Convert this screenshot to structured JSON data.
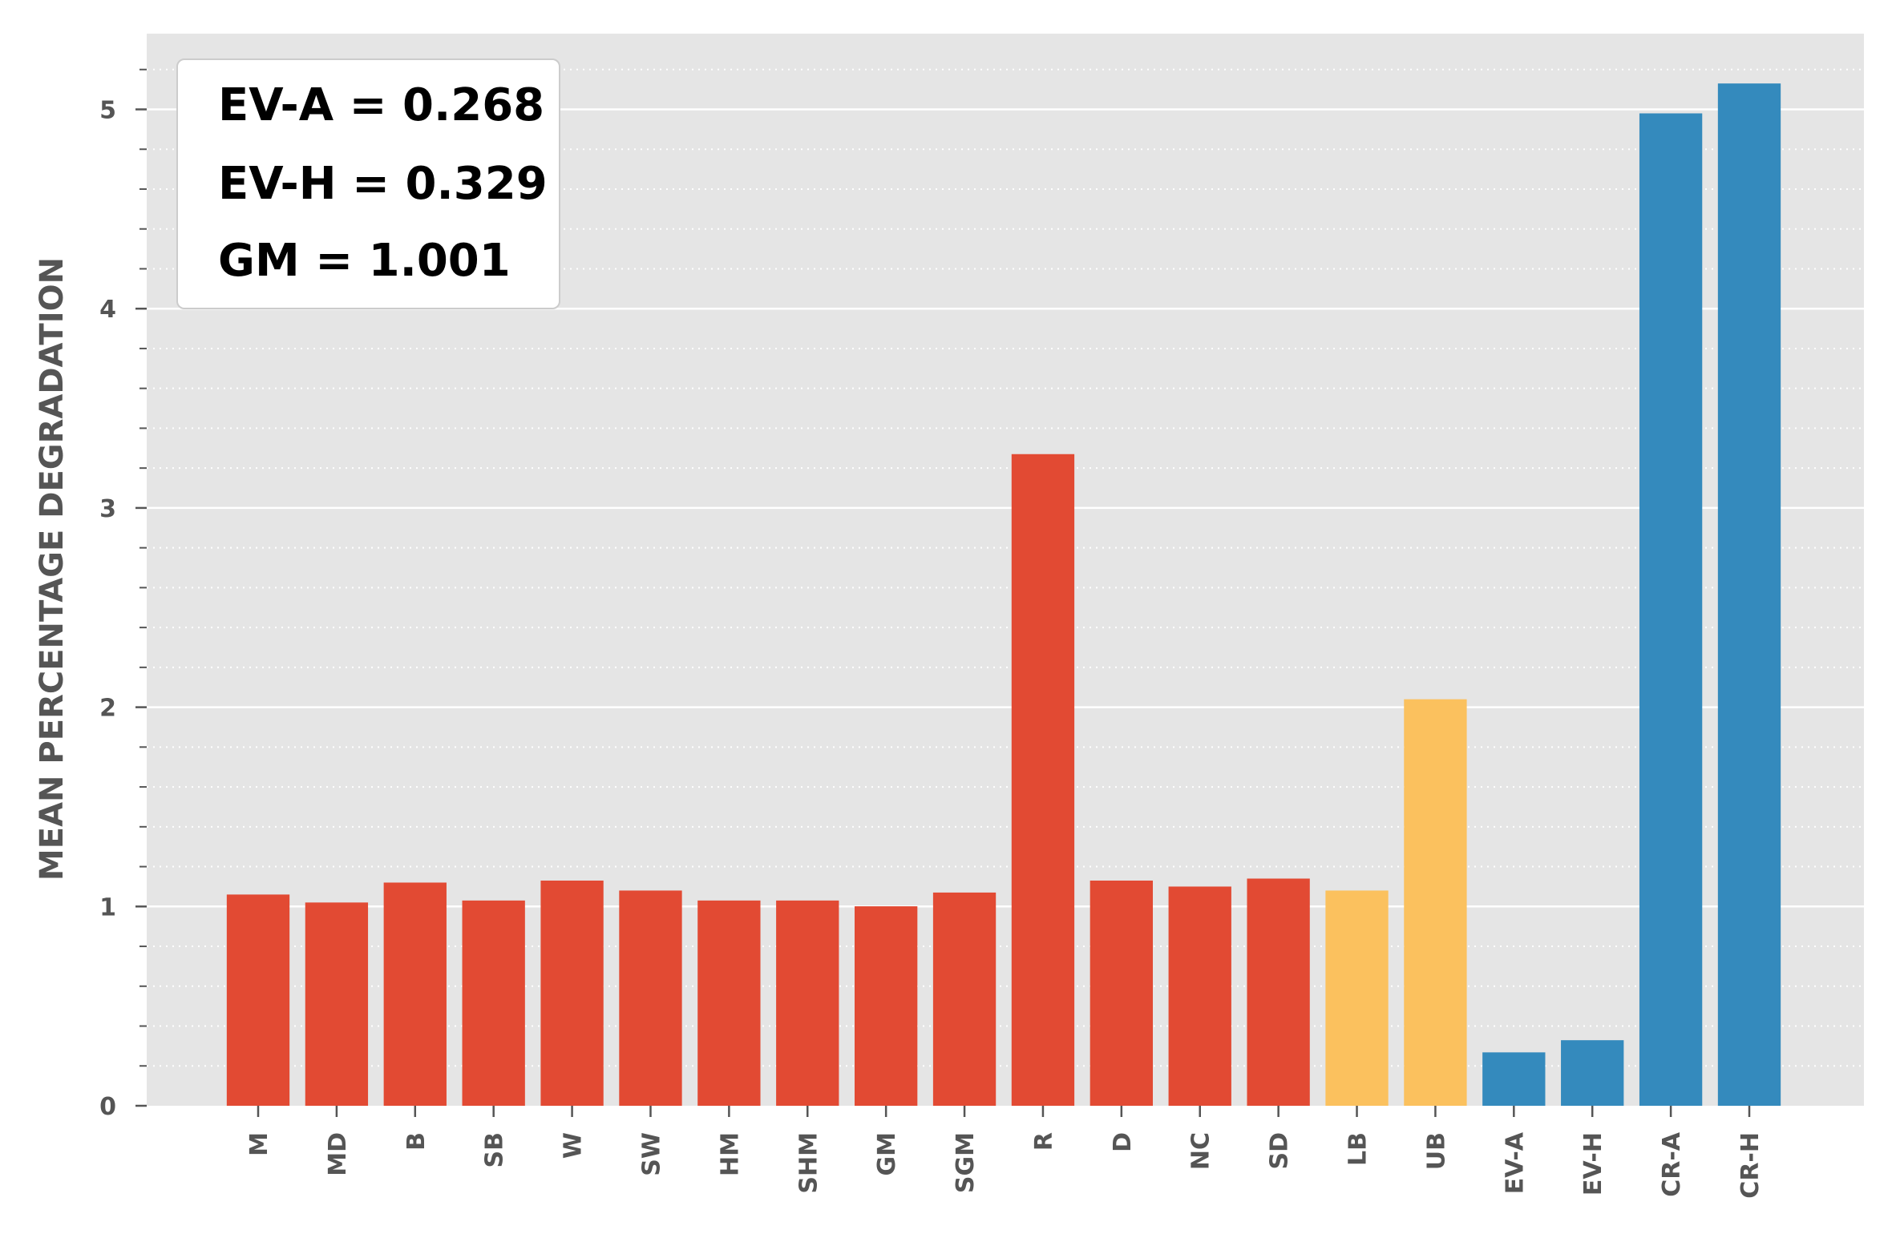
{
  "chart_data": {
    "type": "bar",
    "title": "",
    "xlabel": "",
    "ylabel": "MEAN PERCENTAGE DEGRADATION",
    "ylim": [
      0,
      5.38
    ],
    "y_ticks": [
      "0",
      "1",
      "2",
      "3",
      "4",
      "5"
    ],
    "grid": true,
    "categories": [
      "M",
      "MD",
      "B",
      "SB",
      "W",
      "SW",
      "HM",
      "SHM",
      "GM",
      "SGM",
      "R",
      "D",
      "NC",
      "SD",
      "LB",
      "UB",
      "EV-A",
      "EV-H",
      "CR-A",
      "CR-H"
    ],
    "values": [
      1.06,
      1.02,
      1.12,
      1.03,
      1.13,
      1.08,
      1.03,
      1.03,
      1.001,
      1.07,
      3.27,
      1.13,
      1.1,
      1.14,
      1.08,
      2.04,
      0.268,
      0.329,
      4.98,
      5.13
    ],
    "groups": [
      "red",
      "red",
      "red",
      "red",
      "red",
      "red",
      "red",
      "red",
      "red",
      "red",
      "red",
      "red",
      "red",
      "red",
      "yellow",
      "yellow",
      "blue",
      "blue",
      "blue",
      "blue"
    ],
    "colors": {
      "red": "#E24A33",
      "yellow": "#FBC15E",
      "blue": "#348ABD"
    },
    "annotation": {
      "lines": [
        "EV-A = 0.268",
        "EV-H = 0.329",
        "GM = 1.001"
      ],
      "placement": "top-left"
    }
  }
}
